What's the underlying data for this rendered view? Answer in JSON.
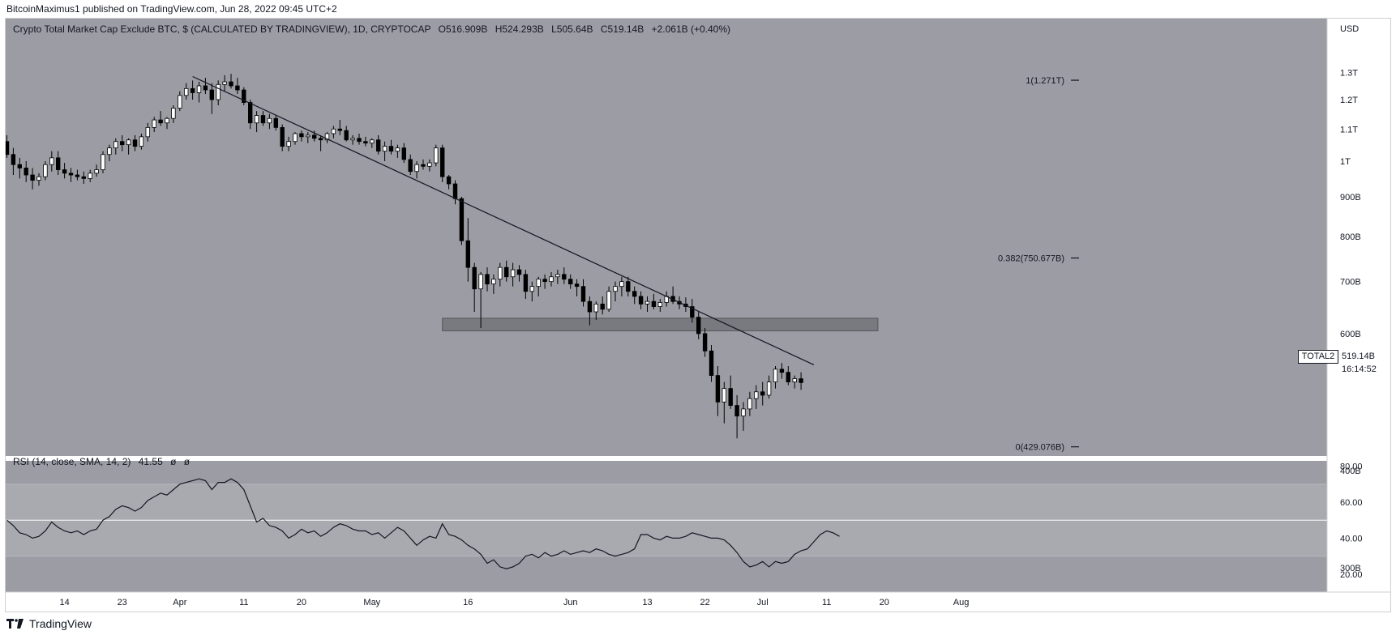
{
  "header": {
    "published": "BitcoinMaximus1 published on TradingView.com, Jun 28, 2022 09:45 UTC+2"
  },
  "legend": {
    "symbol": "Crypto Total Market Cap Exclude BTC, $ (CALCULATED BY TRADINGVIEW), 1D, CRYPTOCAP",
    "o_label": "O",
    "o_value": "516.909B",
    "h_label": "H",
    "h_value": "524.293B",
    "l_label": "L",
    "l_value": "505.64B",
    "c_label": "C",
    "c_value": "519.14B",
    "change": "+2.061B (+0.40%)"
  },
  "rsi_legend": {
    "label": "RSI (14, close, SMA, 14, 2)",
    "value": "41.55",
    "na1": "ø",
    "na2": "ø"
  },
  "price_tag": {
    "symbol": "TOTAL2",
    "price": "519.14B",
    "countdown": "16:14:52"
  },
  "footer": {
    "brand": "TradingView"
  },
  "colors": {
    "chart_bg": "#9c9ca4",
    "up": "#ffffff",
    "down": "#000000",
    "line": "#131722",
    "zone": "#6e6e74"
  },
  "chart_data": [
    {
      "type": "candlestick",
      "title": "Crypto Total Market Cap Exclude BTC, $ (CALCULATED BY TRADINGVIEW), 1D, CRYPTOCAP",
      "y_unit": "USD",
      "yscale": "log",
      "ylim": [
        300,
        1400
      ],
      "y_ticks": [
        {
          "value": 1300,
          "label": "1.3T"
        },
        {
          "value": 1200,
          "label": "1.2T"
        },
        {
          "value": 1100,
          "label": "1.1T"
        },
        {
          "value": 1000,
          "label": "1T"
        },
        {
          "value": 900,
          "label": "900B"
        },
        {
          "value": 800,
          "label": "800B"
        },
        {
          "value": 700,
          "label": "700B"
        },
        {
          "value": 600,
          "label": "600B"
        },
        {
          "value": 400,
          "label": "400B"
        },
        {
          "value": 300,
          "label": "300B"
        }
      ],
      "x_ticks": [
        {
          "date": "2022-03-14",
          "label": "14"
        },
        {
          "date": "2022-03-23",
          "label": "23"
        },
        {
          "date": "2022-04-01",
          "label": "Apr"
        },
        {
          "date": "2022-04-11",
          "label": "11"
        },
        {
          "date": "2022-04-20",
          "label": "20"
        },
        {
          "date": "2022-05-01",
          "label": "May"
        },
        {
          "date": "2022-05-16",
          "label": "16"
        },
        {
          "date": "2022-06-01",
          "label": "Jun"
        },
        {
          "date": "2022-06-13",
          "label": "13"
        },
        {
          "date": "2022-06-22",
          "label": "22"
        },
        {
          "date": "2022-07-01",
          "label": "Jul"
        },
        {
          "date": "2022-07-11",
          "label": "11"
        },
        {
          "date": "2022-07-20",
          "label": "20"
        },
        {
          "date": "2022-08-01",
          "label": "Aug"
        }
      ],
      "x_range": [
        "2022-03-05",
        "2022-08-08"
      ],
      "candles_start_date": "2022-03-05",
      "candles": [
        [
          1060,
          1080,
          1010,
          1020
        ],
        [
          1020,
          1040,
          960,
          990
        ],
        [
          990,
          1010,
          950,
          980
        ],
        [
          980,
          1000,
          940,
          960
        ],
        [
          960,
          980,
          920,
          945
        ],
        [
          945,
          965,
          930,
          955
        ],
        [
          955,
          1000,
          945,
          990
        ],
        [
          990,
          1030,
          970,
          1010
        ],
        [
          1010,
          1030,
          960,
          975
        ],
        [
          975,
          995,
          950,
          965
        ],
        [
          965,
          980,
          940,
          960
        ],
        [
          960,
          975,
          945,
          955
        ],
        [
          955,
          970,
          935,
          950
        ],
        [
          950,
          975,
          940,
          965
        ],
        [
          965,
          990,
          955,
          975
        ],
        [
          975,
          1030,
          965,
          1020
        ],
        [
          1020,
          1050,
          1000,
          1040
        ],
        [
          1040,
          1070,
          1020,
          1060
        ],
        [
          1060,
          1080,
          1030,
          1050
        ],
        [
          1050,
          1070,
          1020,
          1065
        ],
        [
          1065,
          1080,
          1030,
          1045
        ],
        [
          1045,
          1085,
          1035,
          1075
        ],
        [
          1075,
          1120,
          1060,
          1105
        ],
        [
          1105,
          1140,
          1090,
          1130
        ],
        [
          1130,
          1160,
          1110,
          1120
        ],
        [
          1120,
          1140,
          1100,
          1135
        ],
        [
          1135,
          1180,
          1120,
          1170
        ],
        [
          1170,
          1230,
          1160,
          1215
        ],
        [
          1215,
          1260,
          1200,
          1240
        ],
        [
          1240,
          1270,
          1200,
          1225
        ],
        [
          1225,
          1265,
          1190,
          1250
        ],
        [
          1250,
          1280,
          1220,
          1235
        ],
        [
          1235,
          1260,
          1150,
          1200
        ],
        [
          1200,
          1270,
          1180,
          1255
        ],
        [
          1255,
          1290,
          1230,
          1265
        ],
        [
          1265,
          1295,
          1240,
          1250
        ],
        [
          1250,
          1280,
          1220,
          1235
        ],
        [
          1235,
          1245,
          1180,
          1190
        ],
        [
          1190,
          1200,
          1100,
          1120
        ],
        [
          1120,
          1160,
          1090,
          1145
        ],
        [
          1145,
          1160,
          1110,
          1120
        ],
        [
          1120,
          1150,
          1100,
          1135
        ],
        [
          1135,
          1145,
          1095,
          1105
        ],
        [
          1105,
          1115,
          1030,
          1045
        ],
        [
          1045,
          1075,
          1030,
          1060
        ],
        [
          1060,
          1090,
          1050,
          1085
        ],
        [
          1085,
          1095,
          1060,
          1075
        ],
        [
          1075,
          1090,
          1055,
          1080
        ],
        [
          1080,
          1095,
          1060,
          1070
        ],
        [
          1070,
          1080,
          1030,
          1065
        ],
        [
          1065,
          1090,
          1055,
          1085
        ],
        [
          1085,
          1110,
          1070,
          1100
        ],
        [
          1100,
          1130,
          1080,
          1095
        ],
        [
          1095,
          1110,
          1060,
          1065
        ],
        [
          1065,
          1080,
          1050,
          1070
        ],
        [
          1070,
          1085,
          1050,
          1060
        ],
        [
          1060,
          1075,
          1045,
          1055
        ],
        [
          1055,
          1070,
          1040,
          1065
        ],
        [
          1065,
          1080,
          1020,
          1030
        ],
        [
          1030,
          1060,
          1000,
          1045
        ],
        [
          1045,
          1065,
          1020,
          1030
        ],
        [
          1030,
          1050,
          1010,
          1040
        ],
        [
          1040,
          1055,
          995,
          1005
        ],
        [
          1005,
          1020,
          960,
          970
        ],
        [
          970,
          1000,
          950,
          990
        ],
        [
          990,
          1005,
          975,
          985
        ],
        [
          985,
          1005,
          970,
          995
        ],
        [
          995,
          1050,
          985,
          1040
        ],
        [
          1040,
          1050,
          940,
          955
        ],
        [
          955,
          960,
          920,
          935
        ],
        [
          935,
          945,
          880,
          895
        ],
        [
          895,
          900,
          780,
          790
        ],
        [
          790,
          845,
          700,
          730
        ],
        [
          730,
          740,
          640,
          685
        ],
        [
          685,
          720,
          610,
          715
        ],
        [
          715,
          730,
          680,
          695
        ],
        [
          695,
          715,
          675,
          705
        ],
        [
          705,
          740,
          690,
          730
        ],
        [
          730,
          745,
          700,
          710
        ],
        [
          710,
          740,
          690,
          725
        ],
        [
          725,
          735,
          700,
          715
        ],
        [
          715,
          725,
          665,
          680
        ],
        [
          680,
          700,
          660,
          690
        ],
        [
          690,
          710,
          670,
          705
        ],
        [
          705,
          715,
          685,
          700
        ],
        [
          700,
          720,
          690,
          710
        ],
        [
          710,
          725,
          695,
          715
        ],
        [
          715,
          730,
          695,
          705
        ],
        [
          705,
          715,
          685,
          695
        ],
        [
          695,
          705,
          670,
          690
        ],
        [
          690,
          705,
          650,
          660
        ],
        [
          660,
          670,
          615,
          640
        ],
        [
          640,
          660,
          625,
          655
        ],
        [
          655,
          670,
          635,
          645
        ],
        [
          645,
          690,
          640,
          680
        ],
        [
          680,
          700,
          660,
          690
        ],
        [
          690,
          710,
          670,
          700
        ],
        [
          700,
          710,
          670,
          680
        ],
        [
          680,
          690,
          655,
          670
        ],
        [
          670,
          680,
          645,
          655
        ],
        [
          655,
          670,
          640,
          660
        ],
        [
          660,
          675,
          645,
          650
        ],
        [
          650,
          665,
          640,
          658
        ],
        [
          658,
          680,
          650,
          670
        ],
        [
          670,
          690,
          655,
          660
        ],
        [
          660,
          670,
          645,
          655
        ],
        [
          655,
          668,
          640,
          650
        ],
        [
          650,
          665,
          620,
          630
        ],
        [
          630,
          640,
          590,
          600
        ],
        [
          600,
          610,
          560,
          570
        ],
        [
          570,
          580,
          520,
          530
        ],
        [
          530,
          545,
          470,
          490
        ],
        [
          490,
          520,
          460,
          510
        ],
        [
          510,
          530,
          480,
          485
        ],
        [
          485,
          500,
          440,
          470
        ],
        [
          470,
          490,
          450,
          480
        ],
        [
          480,
          505,
          470,
          495
        ],
        [
          495,
          515,
          480,
          505
        ],
        [
          505,
          520,
          485,
          500
        ],
        [
          500,
          530,
          495,
          520
        ],
        [
          520,
          545,
          510,
          540
        ],
        [
          540,
          550,
          525,
          535
        ],
        [
          535,
          545,
          515,
          520
        ],
        [
          520,
          530,
          510,
          525
        ],
        [
          525,
          535,
          508,
          519
        ]
      ],
      "trendline": [
        {
          "date": "2022-04-03",
          "value": 1285
        },
        {
          "date": "2022-07-09",
          "value": 547
        }
      ],
      "zone": {
        "date_start": "2022-05-12",
        "date_end": "2022-07-19",
        "low": 605,
        "high": 628
      },
      "fib_levels": [
        {
          "label": "1(1.271T)",
          "value": 1271
        },
        {
          "label": "0.382(750.677B)",
          "value": 750.677
        },
        {
          "label": "0(429.076B)",
          "value": 429.076
        }
      ],
      "last_price": 519.14
    },
    {
      "type": "line",
      "name": "RSI (14, close, SMA, 14, 2)",
      "ylim": [
        10,
        83
      ],
      "y_ticks": [
        {
          "value": 80,
          "label": "80.00"
        },
        {
          "value": 60,
          "label": "60.00"
        },
        {
          "value": 40,
          "label": "40.00"
        },
        {
          "value": 20,
          "label": "20.00"
        }
      ],
      "bands": {
        "upper": 70,
        "middle": 50,
        "lower": 30
      },
      "values": [
        50,
        47,
        43,
        42,
        40,
        41,
        44,
        49,
        46,
        44,
        43,
        44,
        42,
        44,
        45,
        50,
        52,
        56,
        58,
        57,
        55,
        57,
        61,
        63,
        65,
        64,
        67,
        70,
        71,
        72,
        73,
        72,
        67,
        71,
        71,
        73,
        71,
        67,
        58,
        49,
        51,
        47,
        46,
        44,
        40,
        42,
        45,
        43,
        44,
        41,
        43,
        46,
        48,
        47,
        45,
        44,
        44,
        42,
        43,
        40,
        43,
        46,
        44,
        40,
        36,
        39,
        41,
        40,
        48,
        42,
        41,
        39,
        36,
        34,
        31,
        26,
        28,
        24,
        23,
        24,
        26,
        30,
        31,
        29,
        32,
        30,
        31,
        33,
        31,
        32,
        33,
        32,
        34,
        33,
        31,
        30,
        31,
        32,
        34,
        42,
        42,
        40,
        39,
        41,
        40,
        40,
        41,
        43,
        42,
        41,
        40,
        40,
        39,
        36,
        32,
        27,
        24,
        25,
        27,
        24,
        27,
        26,
        27,
        31,
        33,
        34,
        38,
        42,
        44,
        43,
        41
      ]
    }
  ]
}
